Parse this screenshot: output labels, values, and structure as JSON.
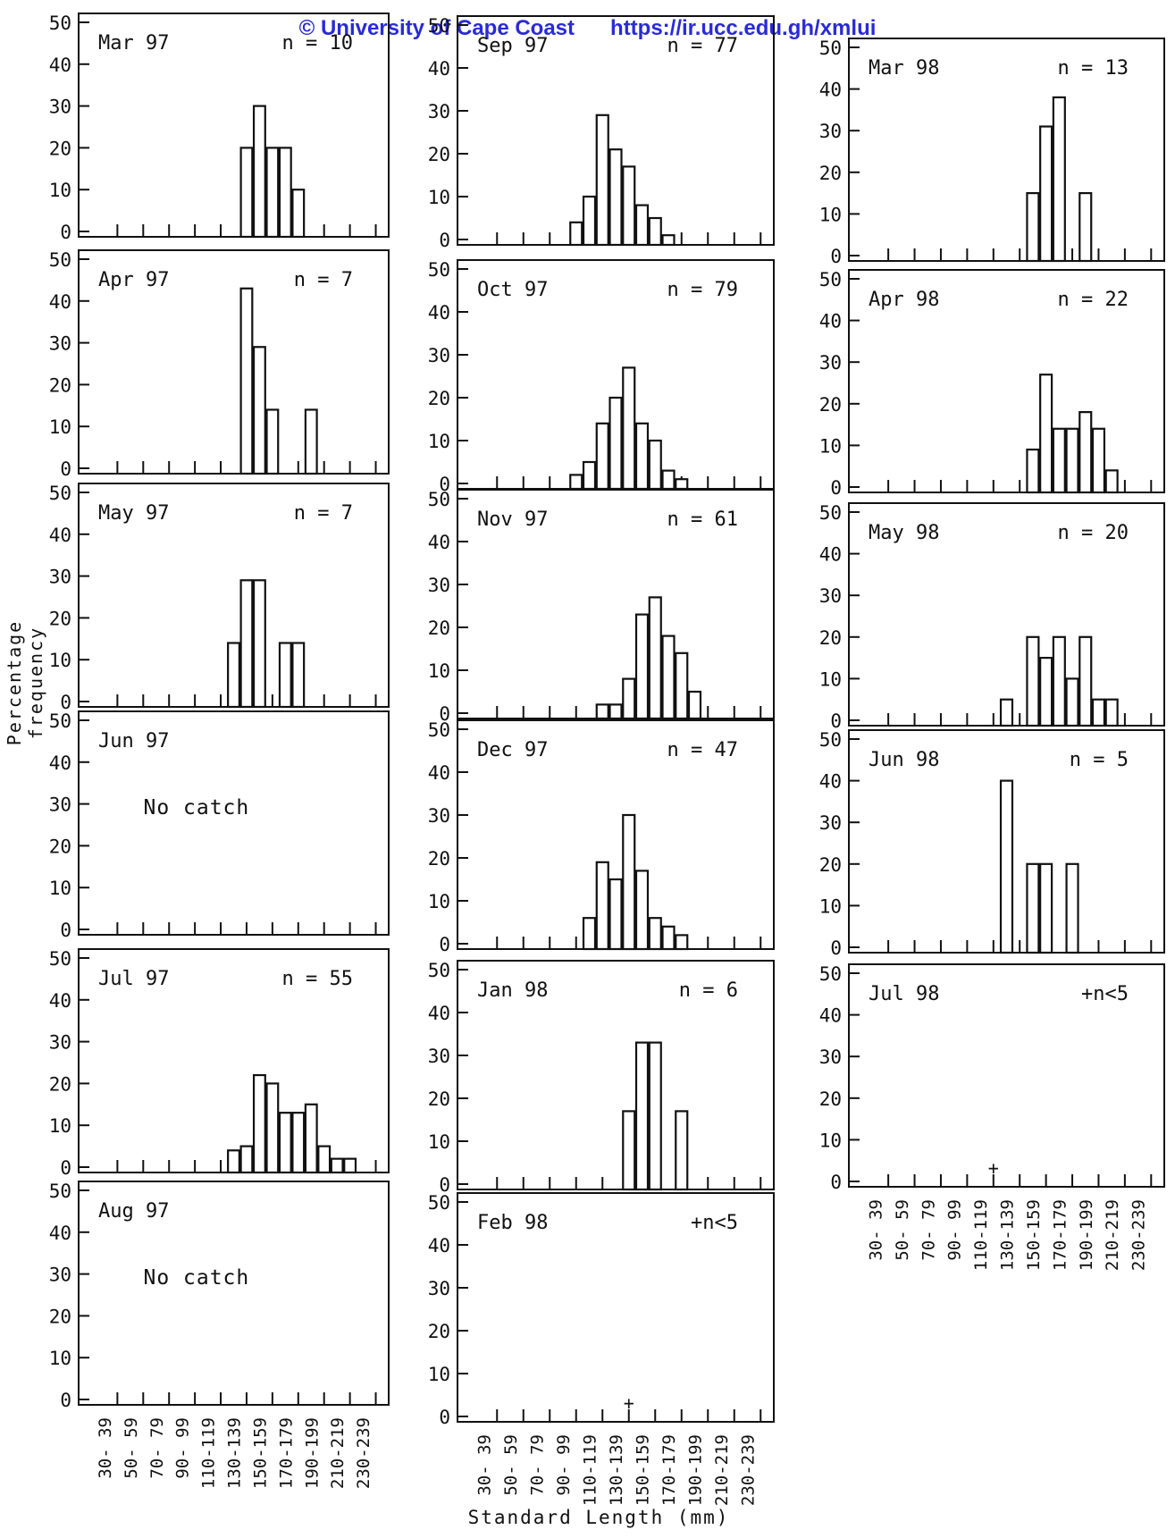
{
  "watermark": "© University of Cape Coast      https://ir.ucc.edu.gh/xmlui",
  "y_axis_label": "Percentage frequency",
  "x_axis_label": "Standard Length (mm)",
  "colors": {
    "ink": "#111111",
    "watermark": "#2a2ad8"
  },
  "chart_data": {
    "type": "bar",
    "ylim": [
      0,
      50
    ],
    "y_ticks": [
      "0",
      "10",
      "20",
      "30",
      "40",
      "50"
    ],
    "categories": [
      "30-39",
      "50-59",
      "70-79",
      "90-99",
      "110-119",
      "130-139",
      "150-159",
      "170-179",
      "190-199",
      "210-219",
      "230-239"
    ],
    "tick_labels": [
      "30- 39",
      "50- 59",
      "70- 79",
      "90- 99",
      "110-119",
      "130-139",
      "150-159",
      "170-179",
      "190-199",
      "210-219",
      "230-239"
    ],
    "panels": [
      {
        "title": "Mar 97",
        "n": "n = 10",
        "values": [
          [
            90,
            20
          ],
          [
            95,
            30
          ],
          [
            100,
            20
          ],
          [
            105,
            20
          ],
          [
            110,
            10
          ]
        ]
      },
      {
        "title": "Apr 97",
        "n": "n = 7",
        "values": [
          [
            90,
            43
          ],
          [
            95,
            29
          ],
          [
            100,
            14
          ],
          [
            115,
            14
          ]
        ]
      },
      {
        "title": "May 97",
        "n": "n = 7",
        "values": [
          [
            85,
            14
          ],
          [
            90,
            29
          ],
          [
            95,
            29
          ],
          [
            105,
            14
          ],
          [
            110,
            14
          ]
        ]
      },
      {
        "title": "Jun 97",
        "n": "",
        "values": [],
        "note": "No catch"
      },
      {
        "title": "Jul 97",
        "n": "n = 55",
        "values": [
          [
            85,
            4
          ],
          [
            90,
            5
          ],
          [
            95,
            22
          ],
          [
            100,
            20
          ],
          [
            105,
            13
          ],
          [
            110,
            13
          ],
          [
            115,
            15
          ],
          [
            120,
            5
          ],
          [
            125,
            2
          ],
          [
            130,
            2
          ]
        ]
      },
      {
        "title": "Aug 97",
        "n": "",
        "values": [],
        "note": "No catch"
      },
      {
        "title": "Sep 97",
        "n": "n = 77",
        "values": [
          [
            70,
            4
          ],
          [
            75,
            10
          ],
          [
            80,
            29
          ],
          [
            85,
            21
          ],
          [
            90,
            17
          ],
          [
            95,
            8
          ],
          [
            100,
            5
          ],
          [
            105,
            1
          ]
        ]
      },
      {
        "title": "Oct 97",
        "n": "n = 79",
        "values": [
          [
            70,
            2
          ],
          [
            75,
            5
          ],
          [
            80,
            14
          ],
          [
            85,
            20
          ],
          [
            90,
            27
          ],
          [
            95,
            14
          ],
          [
            100,
            10
          ],
          [
            105,
            3
          ],
          [
            110,
            1
          ]
        ]
      },
      {
        "title": "Nov 97",
        "n": "n = 61",
        "values": [
          [
            80,
            2
          ],
          [
            85,
            2
          ],
          [
            90,
            8
          ],
          [
            95,
            23
          ],
          [
            100,
            27
          ],
          [
            105,
            18
          ],
          [
            110,
            14
          ],
          [
            115,
            5
          ]
        ]
      },
      {
        "title": "Dec 97",
        "n": "n = 47",
        "values": [
          [
            75,
            6
          ],
          [
            80,
            19
          ],
          [
            85,
            15
          ],
          [
            90,
            30
          ],
          [
            95,
            17
          ],
          [
            100,
            6
          ],
          [
            105,
            4
          ],
          [
            110,
            2
          ]
        ]
      },
      {
        "title": "Jan 98",
        "n": "n = 6",
        "values": [
          [
            90,
            17
          ],
          [
            95,
            33
          ],
          [
            100,
            33
          ],
          [
            110,
            17
          ]
        ]
      },
      {
        "title": "Feb 98",
        "n": "+n<5",
        "values": [],
        "plus_at": 90
      },
      {
        "title": "Mar 98",
        "n": "n = 13",
        "values": [
          [
            95,
            15
          ],
          [
            100,
            31
          ],
          [
            105,
            38
          ],
          [
            115,
            15
          ]
        ]
      },
      {
        "title": "Apr 98",
        "n": "n = 22",
        "values": [
          [
            95,
            9
          ],
          [
            100,
            27
          ],
          [
            105,
            14
          ],
          [
            110,
            14
          ],
          [
            115,
            18
          ],
          [
            120,
            14
          ],
          [
            125,
            4
          ]
        ]
      },
      {
        "title": "May 98",
        "n": "n = 20",
        "values": [
          [
            85,
            5
          ],
          [
            95,
            20
          ],
          [
            100,
            15
          ],
          [
            105,
            20
          ],
          [
            110,
            10
          ],
          [
            115,
            20
          ],
          [
            120,
            5
          ],
          [
            125,
            5
          ]
        ]
      },
      {
        "title": "Jun 98",
        "n": "n = 5",
        "values": [
          [
            85,
            40
          ],
          [
            95,
            20
          ],
          [
            100,
            20
          ],
          [
            110,
            20
          ]
        ]
      },
      {
        "title": "Jul 98",
        "n": "+n<5",
        "values": [],
        "plus_at": 80
      }
    ]
  }
}
